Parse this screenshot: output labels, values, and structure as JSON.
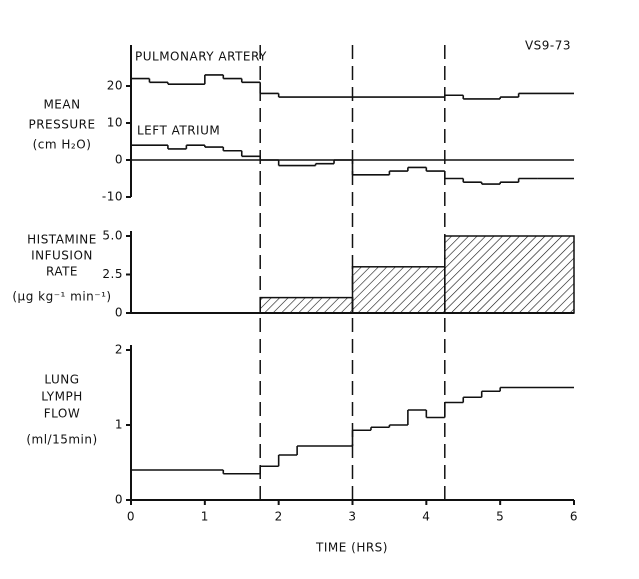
{
  "id_label": "VS9-73",
  "x_label": "TIME (HRS)",
  "chart_data": [
    {
      "type": "step",
      "color": "#111",
      "y_label": [
        "MEAN",
        "PRESSURE",
        "(cm H₂O)"
      ],
      "xlim": [
        0,
        6
      ],
      "ylim": [
        -10,
        30
      ],
      "yticks": [
        20,
        10,
        0,
        -10
      ],
      "zero_line": true,
      "series": [
        {
          "name": "PULMONARY ARTERY",
          "bins": [
            0,
            0.25,
            0.5,
            1,
            1.25,
            1.5,
            1.75,
            2,
            3,
            4.25,
            4.5,
            5,
            5.25,
            6
          ],
          "values": [
            22,
            21,
            20.5,
            23,
            22,
            21,
            18,
            17,
            17,
            17.5,
            16.5,
            17,
            18
          ]
        },
        {
          "name": "LEFT ATRIUM",
          "bins": [
            0,
            0.5,
            0.75,
            1,
            1.25,
            1.5,
            1.75,
            2,
            2.5,
            2.75,
            3,
            3.5,
            3.75,
            4,
            4.25,
            4.5,
            4.75,
            5,
            5.25,
            5.5,
            6
          ],
          "values": [
            4,
            3,
            4,
            3.5,
            2.5,
            1,
            0,
            -1.5,
            -1,
            0,
            -4,
            -3,
            -2,
            -3,
            -5,
            -6,
            -6.5,
            -6,
            -5,
            -5
          ]
        }
      ]
    },
    {
      "type": "histogram",
      "color": "#111",
      "y_label": [
        "HISTAMINE",
        "INFUSION",
        "RATE",
        "(µg kg⁻¹ min⁻¹)"
      ],
      "xlim": [
        0,
        6
      ],
      "ylim": [
        0,
        5
      ],
      "yticks": [
        {
          "value": 5,
          "label": "5.0"
        },
        2.5,
        0
      ],
      "bins": [
        1.75,
        3,
        4.25,
        6
      ],
      "values": [
        1,
        3,
        5
      ]
    },
    {
      "type": "step",
      "color": "#111",
      "y_label": [
        "LUNG",
        "LYMPH",
        "FLOW",
        "(ml/15min)"
      ],
      "xlim": [
        0,
        6
      ],
      "xticks": [
        0,
        1,
        2,
        3,
        4,
        5,
        6
      ],
      "ylim": [
        0,
        2
      ],
      "yticks": [
        2,
        1,
        0
      ],
      "series": [
        {
          "bins": [
            0,
            1.25,
            1.75,
            2,
            2.25,
            3,
            3.25,
            3.5,
            3.75,
            4,
            4.25,
            4.5,
            4.75,
            5,
            6
          ],
          "values": [
            0.4,
            0.35,
            0.45,
            0.6,
            0.72,
            0.93,
            0.97,
            1.0,
            1.2,
            1.1,
            1.3,
            1.37,
            1.45,
            1.5
          ]
        }
      ]
    }
  ]
}
